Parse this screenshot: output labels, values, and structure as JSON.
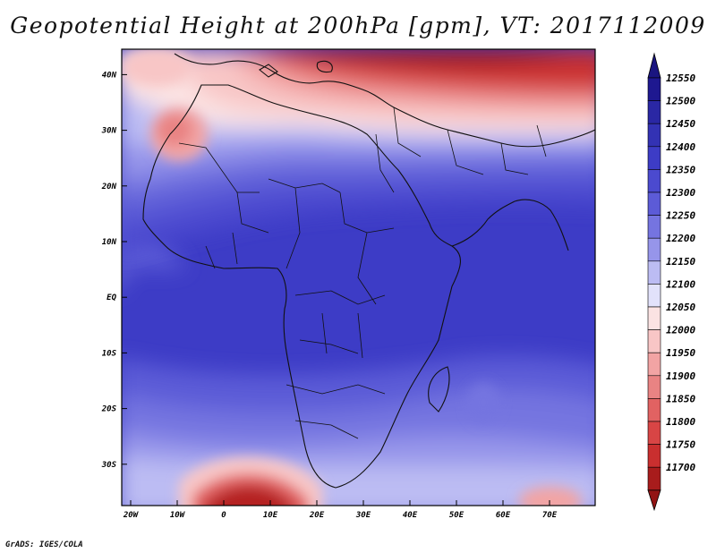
{
  "title": "Geopotential Height at 200hPa [gpm], VT: 2017112009",
  "credit": "GrADS: IGES/COLA",
  "map": {
    "lat_labels": [
      {
        "lat": 40,
        "label": "40N"
      },
      {
        "lat": 30,
        "label": "30N"
      },
      {
        "lat": 20,
        "label": "20N"
      },
      {
        "lat": 10,
        "label": "10N"
      },
      {
        "lat": 0,
        "label": "EQ"
      },
      {
        "lat": -10,
        "label": "10S"
      },
      {
        "lat": -20,
        "label": "20S"
      },
      {
        "lat": -30,
        "label": "30S"
      }
    ],
    "lon_labels": [
      {
        "lon": -20,
        "label": "20W"
      },
      {
        "lon": -10,
        "label": "10W"
      },
      {
        "lon": 0,
        "label": "0"
      },
      {
        "lon": 10,
        "label": "10E"
      },
      {
        "lon": 20,
        "label": "20E"
      },
      {
        "lon": 30,
        "label": "30E"
      },
      {
        "lon": 40,
        "label": "40E"
      },
      {
        "lon": 50,
        "label": "50E"
      },
      {
        "lon": 60,
        "label": "60E"
      },
      {
        "lon": 70,
        "label": "70E"
      }
    ]
  },
  "colorbar": {
    "levels": [
      {
        "value": "12550",
        "color": "#1e1890"
      },
      {
        "value": "12500",
        "color": "#2a27a4"
      },
      {
        "value": "12450",
        "color": "#3332b4"
      },
      {
        "value": "12400",
        "color": "#3d3cc6"
      },
      {
        "value": "12350",
        "color": "#4b4acf"
      },
      {
        "value": "12300",
        "color": "#5c5bd7"
      },
      {
        "value": "12250",
        "color": "#7574e0"
      },
      {
        "value": "12200",
        "color": "#9695ea"
      },
      {
        "value": "12150",
        "color": "#bcbcf3"
      },
      {
        "value": "12100",
        "color": "#e2e2fb"
      },
      {
        "value": "12050",
        "color": "#fbe3e3"
      },
      {
        "value": "12000",
        "color": "#f8c6c6"
      },
      {
        "value": "11950",
        "color": "#f2a4a4"
      },
      {
        "value": "11900",
        "color": "#e98383"
      },
      {
        "value": "11850",
        "color": "#e16262"
      },
      {
        "value": "11800",
        "color": "#d84545"
      },
      {
        "value": "11750",
        "color": "#c92f2f"
      },
      {
        "value": "11700",
        "color": "#a81c1c"
      }
    ],
    "top_arrow_color": "#1a1580",
    "bottom_arrow_color": "#921414"
  }
}
